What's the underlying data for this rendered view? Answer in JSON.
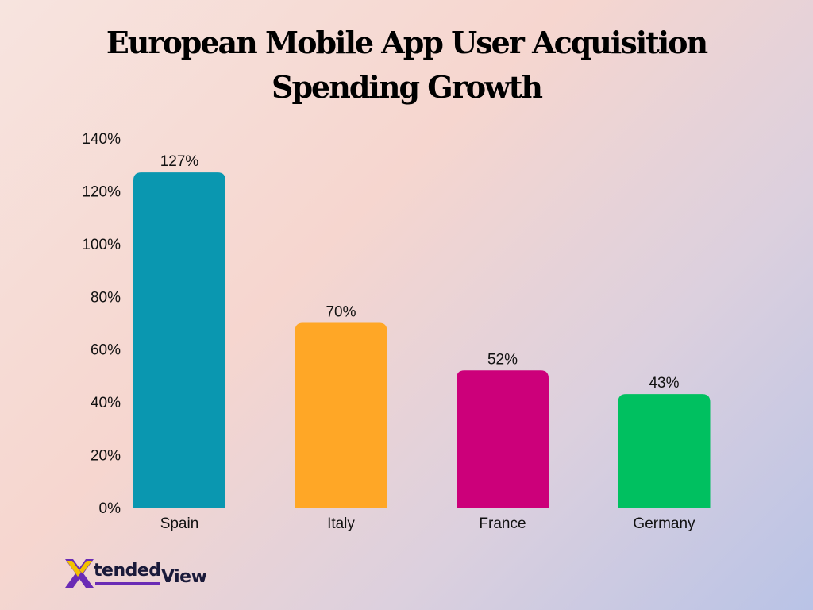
{
  "chart_data": {
    "type": "bar",
    "title": "European Mobile App User Acquisition Spending Growth",
    "categories": [
      "Spain",
      "Italy",
      "France",
      "Germany"
    ],
    "values": [
      127,
      70,
      52,
      43
    ],
    "data_labels": [
      "127%",
      "70%",
      "52%",
      "43%"
    ],
    "colors": [
      "#0a97b0",
      "#ffa726",
      "#cc007a",
      "#00c060"
    ],
    "ylim": [
      0,
      140
    ],
    "yticks": [
      0,
      20,
      40,
      60,
      80,
      100,
      120,
      140
    ],
    "ytick_labels": [
      "0%",
      "20%",
      "40%",
      "60%",
      "80%",
      "100%",
      "120%",
      "140%"
    ],
    "xlabel": "",
    "ylabel": "",
    "grid": false,
    "legend": "none"
  },
  "logo": {
    "part1": "tended",
    "part2": "View",
    "icon": "x-logo-icon",
    "colors": [
      "#f2c200",
      "#6a2bb5"
    ]
  }
}
